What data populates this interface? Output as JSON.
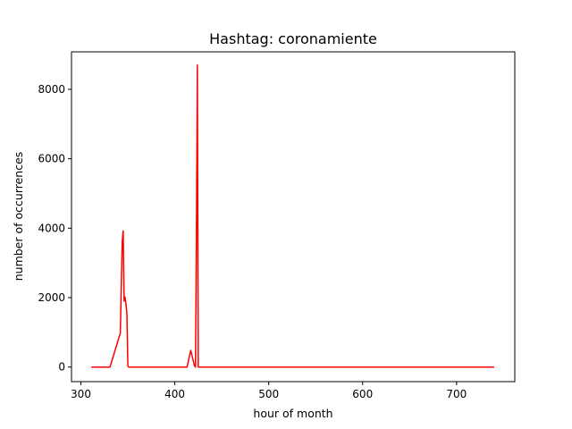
{
  "chart_data": {
    "type": "line",
    "title": "Hashtag: coronamiente",
    "xlabel": "hour of month",
    "ylabel": "number of occurrences",
    "xlim": [
      290,
      762
    ],
    "ylim": [
      -420,
      9080
    ],
    "xticks": [
      300,
      400,
      500,
      600,
      700
    ],
    "yticks": [
      0,
      2000,
      4000,
      6000,
      8000
    ],
    "grid": false,
    "legend": "none",
    "series": [
      {
        "color": "#ff0000",
        "x": [
          311,
          331,
          342,
          344,
          345,
          346,
          347,
          348,
          349,
          350,
          351,
          360,
          380,
          400,
          413,
          417,
          421,
          422,
          423,
          424,
          425,
          427,
          440,
          460,
          500,
          600,
          700,
          740
        ],
        "y": [
          0,
          0,
          980,
          3600,
          3920,
          1900,
          2020,
          1800,
          1550,
          30,
          0,
          0,
          0,
          0,
          0,
          480,
          30,
          0,
          3600,
          8700,
          0,
          0,
          0,
          0,
          0,
          0,
          0,
          0
        ]
      }
    ]
  }
}
